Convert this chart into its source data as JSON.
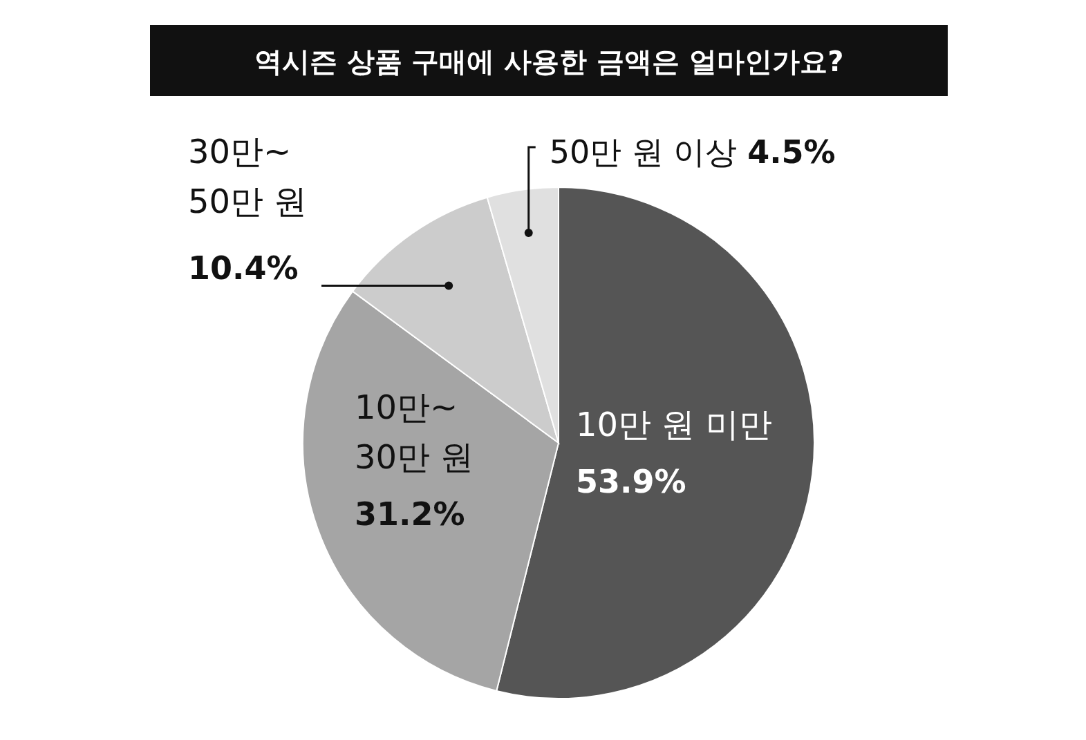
{
  "chart_data": {
    "type": "pie",
    "title": "역시즌 상품 구매에 사용한 금액은 얼마인가요?",
    "categories": [
      "10만 원 미만",
      "10만~30만 원",
      "30만~50만 원",
      "50만 원 이상"
    ],
    "values": [
      53.9,
      31.2,
      10.4,
      4.5
    ],
    "value_labels": [
      "53.9%",
      "31.2%",
      "10.4%",
      "4.5%"
    ],
    "colors": [
      "#555555",
      "#a5a5a5",
      "#cccccc",
      "#e0e0e0"
    ]
  }
}
